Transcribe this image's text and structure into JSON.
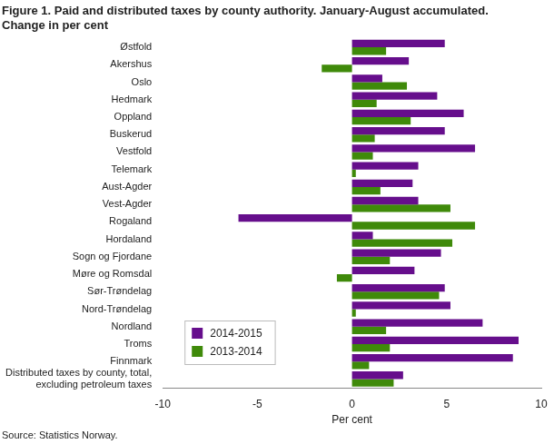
{
  "chart_data": {
    "type": "bar",
    "orientation": "horizontal",
    "title": [
      "Figure 1. Paid and distributed taxes by county authority. January-August accumulated.",
      "Change in per cent"
    ],
    "source": "Source: Statistics Norway.",
    "x_label": "Per cent",
    "categories": [
      "Østfold",
      "Akershus",
      "Oslo",
      "Hedmark",
      "Oppland",
      "Buskerud",
      "Vestfold",
      "Telemark",
      "Aust-Agder",
      "Vest-Agder",
      "Rogaland",
      "Hordaland",
      "Sogn og Fjordane",
      "Møre og Romsdal",
      "Sør-Trøndelag",
      "Nord-Trøndelag",
      "Nordland",
      "Troms",
      "Finnmark",
      [
        "Distributed taxes by county, total,",
        "excluding petroleum taxes"
      ]
    ],
    "series": [
      {
        "name": "2014-2015",
        "color": "#660e8c",
        "values": [
          4.9,
          3.0,
          1.6,
          4.5,
          5.9,
          4.9,
          6.5,
          3.5,
          3.2,
          3.5,
          -6.0,
          1.1,
          4.7,
          3.3,
          4.9,
          5.2,
          6.9,
          8.8,
          8.5,
          2.7
        ]
      },
      {
        "name": "2013-2014",
        "color": "#3f8a0a",
        "values": [
          1.8,
          -1.6,
          2.9,
          1.3,
          3.1,
          1.2,
          1.1,
          0.2,
          1.5,
          5.2,
          6.5,
          5.3,
          2.0,
          -0.8,
          4.6,
          0.2,
          1.8,
          2.0,
          0.9,
          2.2
        ]
      }
    ],
    "xlim": [
      -10,
      10
    ],
    "xticks": [
      -10,
      -5,
      0,
      5,
      10
    ],
    "grid": false,
    "legend": "lower left"
  }
}
